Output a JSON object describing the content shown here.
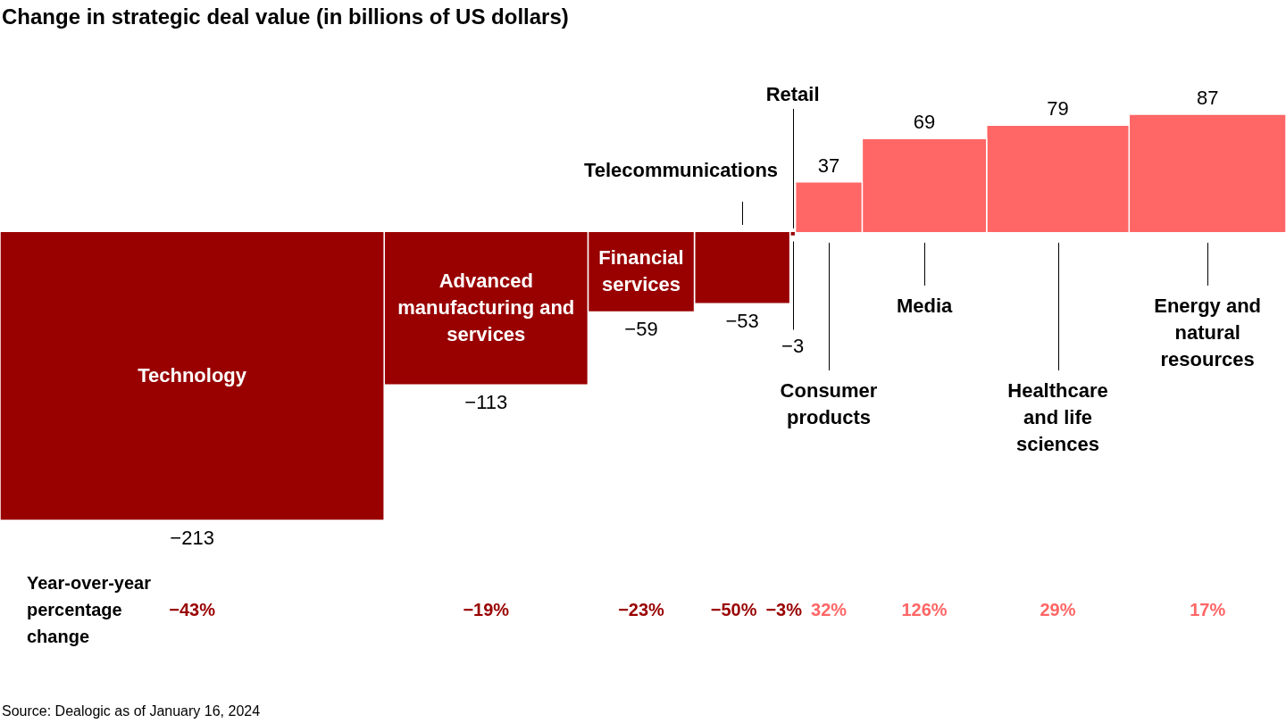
{
  "chart_data": {
    "type": "bar",
    "title": "Change in strategic deal value (in billions of US dollars)",
    "categories": [
      "Technology",
      "Advanced manufacturing and services",
      "Financial services",
      "Telecommunications",
      "Retail",
      "Consumer products",
      "Media",
      "Healthcare and life sciences",
      "Energy and natural resources"
    ],
    "values": [
      -213,
      -113,
      -59,
      -53,
      -3,
      37,
      69,
      79,
      87
    ],
    "value_labels": [
      "−213",
      "−113",
      "−59",
      "−53",
      "−3",
      "37",
      "69",
      "79",
      "87"
    ],
    "colors": [
      "#990000",
      "#990000",
      "#990000",
      "#990000",
      "#990000",
      "#ff6666",
      "#ff6666",
      "#ff6666",
      "#ff6666"
    ],
    "data_labels": true,
    "tick_labels": false,
    "percent_change": {
      "label": "Year-over-year percentage change",
      "values": [
        -43,
        -19,
        -23,
        -50,
        -3,
        32,
        126,
        29,
        17
      ],
      "value_labels": [
        "−43%",
        "−19%",
        "−23%",
        "−50%",
        "−3%",
        "32%",
        "126%",
        "29%",
        "17%"
      ],
      "colors": [
        "#990000",
        "#990000",
        "#990000",
        "#990000",
        "#990000",
        "#ff6666",
        "#ff6666",
        "#ff6666",
        "#ff6666"
      ]
    },
    "source": "Source: Dealogic as of January 16, 2024"
  }
}
